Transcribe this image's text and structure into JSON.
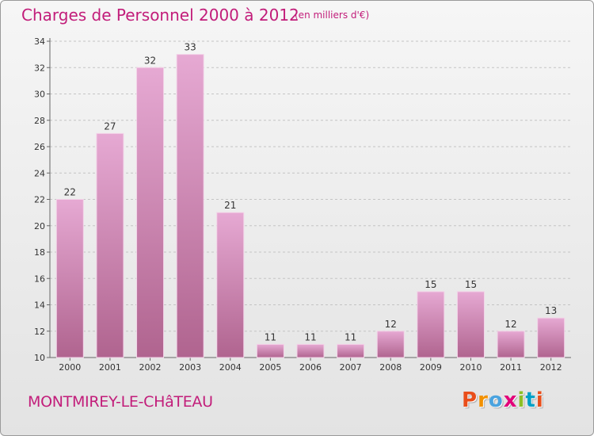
{
  "header": {
    "title": "Charges de Personnel 2000 à 2012",
    "subtitle": "(en milliers d'€)"
  },
  "footer": {
    "commune": "MONTMIREY-LE-CHâTEAU",
    "logo_text": "Proxiti"
  },
  "colors": {
    "accent": "#c21d7a",
    "bar_light": "#e6a9d3",
    "bar_dark": "#b0648f",
    "logo_letters": [
      "#e94e1b",
      "#f29100",
      "#4aa3df",
      "#e2007a",
      "#8cbf26",
      "#00a0c6",
      "#e94e1b"
    ]
  },
  "chart_data": {
    "type": "bar",
    "categories": [
      "2000",
      "2001",
      "2002",
      "2003",
      "2004",
      "2005",
      "2006",
      "2007",
      "2008",
      "2009",
      "2010",
      "2011",
      "2012"
    ],
    "values": [
      22,
      27,
      32,
      33,
      21,
      11,
      11,
      11,
      12,
      15,
      15,
      12,
      13
    ],
    "title": "Charges de Personnel 2000 à 2012",
    "subtitle": "(en milliers d'€)",
    "xlabel": "",
    "ylabel": "",
    "ylim": [
      10,
      34
    ],
    "yticks": [
      10,
      12,
      14,
      16,
      18,
      20,
      22,
      24,
      26,
      28,
      30,
      32,
      34
    ],
    "grid": "horizontal dashed",
    "data_labels": true,
    "legend": "none"
  }
}
